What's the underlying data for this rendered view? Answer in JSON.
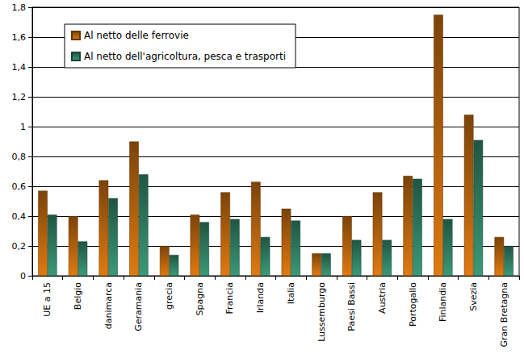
{
  "chart_data": {
    "type": "bar",
    "categories": [
      "UE a 15",
      "Belgio",
      "danimarca",
      "Geramania",
      "grecia",
      "Spagna",
      "Francia",
      "Irlanda",
      "Italia",
      "Lussemburgo",
      "Paesi Bassi",
      "Austria",
      "Portogallo",
      "Finlandia",
      "Svezia",
      "Gran Bretagna"
    ],
    "series": [
      {
        "name": "Al netto delle ferrovie",
        "color": "#e07a10",
        "values": [
          0.57,
          0.4,
          0.64,
          0.9,
          0.2,
          0.41,
          0.56,
          0.63,
          0.45,
          0.15,
          0.4,
          0.56,
          0.67,
          1.75,
          1.08,
          0.26
        ]
      },
      {
        "name": "Al netto dell'agricoltura, pesca e trasporti",
        "color": "#3a9a78",
        "values": [
          0.41,
          0.23,
          0.52,
          0.68,
          0.14,
          0.36,
          0.38,
          0.26,
          0.37,
          0.15,
          0.24,
          0.24,
          0.65,
          0.38,
          0.91,
          0.2
        ]
      }
    ],
    "ylim": [
      0,
      1.8
    ],
    "yticks": [
      0,
      {
        "value": 0.2,
        "label": "0,2"
      },
      {
        "value": 0.4,
        "label": "0,4"
      },
      {
        "value": 0.6,
        "label": "0,6"
      },
      {
        "value": 0.8,
        "label": "0,8"
      },
      1,
      {
        "value": 1.2,
        "label": "1,2"
      },
      {
        "value": 1.4,
        "label": "1,4"
      },
      {
        "value": 1.6,
        "label": "1,6"
      },
      {
        "value": 1.8,
        "label": "1,8"
      }
    ],
    "grid": true,
    "legend": "upper left"
  }
}
